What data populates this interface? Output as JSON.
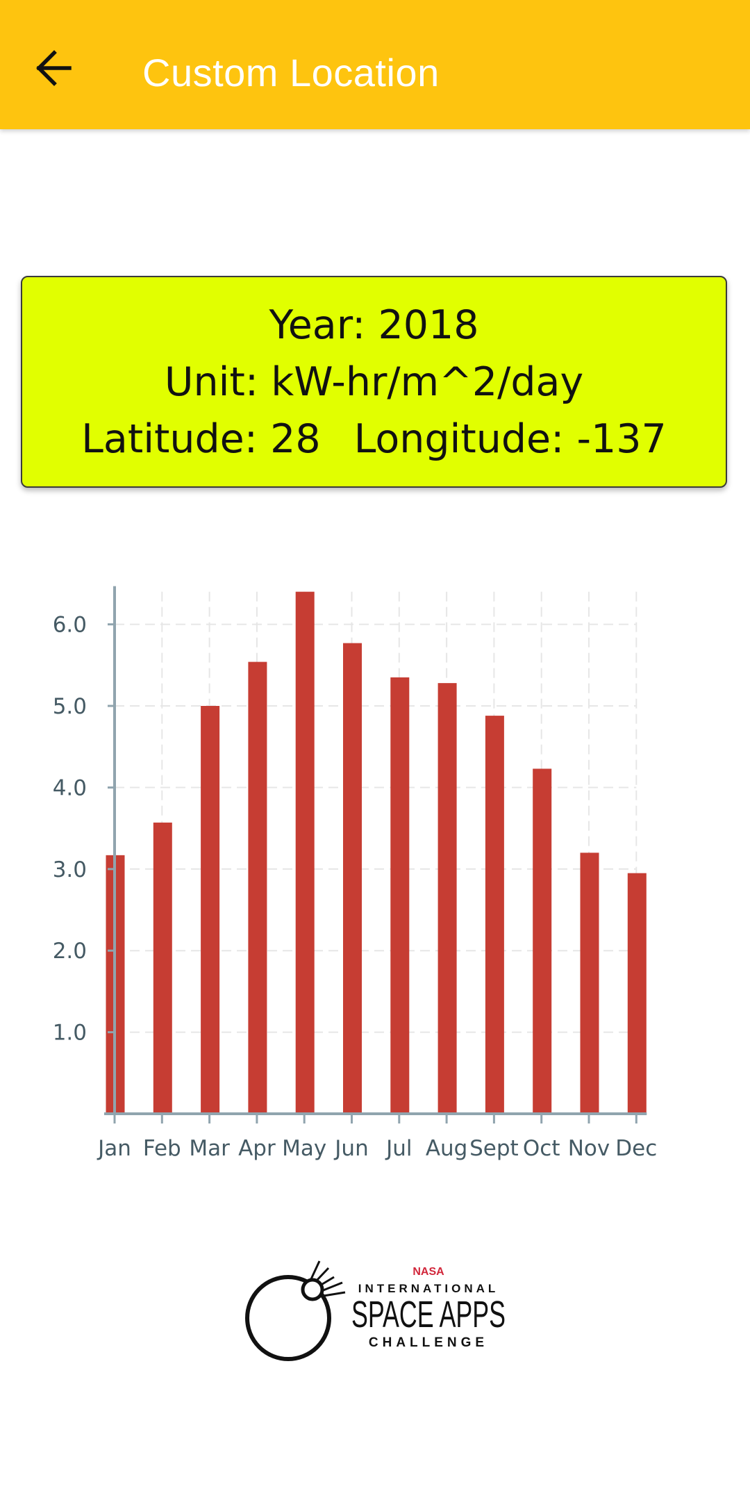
{
  "appbar": {
    "title": "Custom Location",
    "back_icon": "arrow-left-icon",
    "background_color": "#fec40f"
  },
  "info": {
    "year_label": "Year:",
    "year": "2018",
    "unit_label": "Unit:",
    "unit": "kW-hr/m^2/day",
    "latitude_label": "Latitude:",
    "latitude": "28",
    "longitude_label": "Longitude:",
    "longitude": "-137",
    "background_color": "#e1ff00"
  },
  "chart_data": {
    "type": "bar",
    "categories": [
      "Jan",
      "Feb",
      "Mar",
      "Apr",
      "May",
      "Jun",
      "Jul",
      "Aug",
      "Sept",
      "Oct",
      "Nov",
      "Dec"
    ],
    "values": [
      3.17,
      3.57,
      5.0,
      5.54,
      6.4,
      5.77,
      5.35,
      5.28,
      4.88,
      4.23,
      3.2,
      2.95
    ],
    "y_ticks": [
      "1.0",
      "2.0",
      "3.0",
      "4.0",
      "5.0",
      "6.0"
    ],
    "ylim": [
      0,
      6.4
    ],
    "grid": true,
    "bar_color": "#c63d33",
    "title": "",
    "xlabel": "",
    "ylabel": ""
  },
  "logo": {
    "org": "NASA",
    "line1": "INTERNATIONAL",
    "line2": "SPACE APPS",
    "line3": "CHALLENGE",
    "icon": "space-apps-logo-icon"
  }
}
